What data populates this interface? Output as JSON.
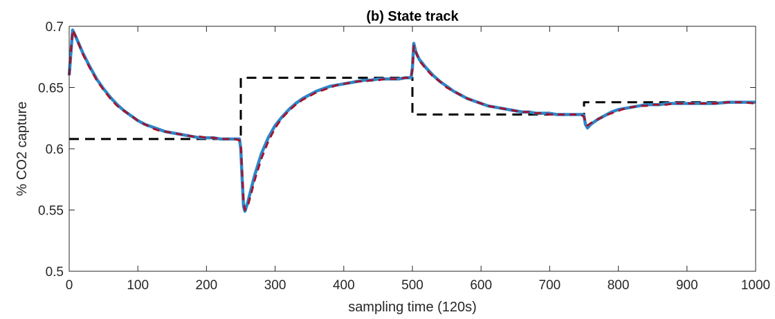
{
  "chart_data": {
    "type": "line",
    "title": "(b) State track",
    "xlabel": "sampling time (120s)",
    "ylabel": "% CO2 capture",
    "xlim": [
      0,
      1000
    ],
    "ylim": [
      0.5,
      0.7
    ],
    "x_ticks": [
      0,
      100,
      200,
      300,
      400,
      500,
      600,
      700,
      800,
      900,
      1000
    ],
    "x_tick_labels": [
      "0",
      "100",
      "200",
      "300",
      "400",
      "500",
      "600",
      "700",
      "800",
      "900",
      "1000"
    ],
    "y_ticks": [
      0.5,
      0.55,
      0.6,
      0.65,
      0.7
    ],
    "y_tick_labels": [
      "0.5",
      "0.55",
      "0.6",
      "0.65",
      "0.7"
    ],
    "grid": false,
    "legend": "none",
    "series": [
      {
        "style": "dashed",
        "color": "#000000",
        "x": [
          0,
          250,
          250,
          500,
          500,
          750,
          750,
          1000
        ],
        "y": [
          0.608,
          0.608,
          0.658,
          0.658,
          0.628,
          0.628,
          0.638,
          0.638
        ]
      },
      {
        "style": "solid",
        "color": "#2e86c8",
        "x": [
          0,
          5,
          10,
          20,
          30,
          40,
          50,
          60,
          70,
          80,
          90,
          100,
          110,
          120,
          130,
          140,
          150,
          160,
          170,
          180,
          190,
          200,
          210,
          220,
          230,
          240,
          248,
          250,
          252,
          254,
          256,
          260,
          265,
          270,
          280,
          290,
          300,
          310,
          320,
          330,
          340,
          350,
          360,
          370,
          380,
          390,
          400,
          410,
          420,
          430,
          440,
          450,
          460,
          470,
          480,
          490,
          498,
          500,
          502,
          505,
          510,
          520,
          530,
          540,
          550,
          560,
          570,
          580,
          590,
          600,
          610,
          620,
          630,
          640,
          650,
          660,
          670,
          680,
          690,
          700,
          710,
          720,
          730,
          740,
          748,
          750,
          752,
          755,
          760,
          770,
          780,
          790,
          800,
          810,
          820,
          830,
          840,
          850,
          860,
          870,
          880,
          890,
          900,
          920,
          940,
          960,
          980,
          1000
        ],
        "y": [
          0.66,
          0.697,
          0.691,
          0.678,
          0.667,
          0.657,
          0.649,
          0.642,
          0.636,
          0.631,
          0.627,
          0.623,
          0.62,
          0.618,
          0.616,
          0.614,
          0.613,
          0.612,
          0.611,
          0.61,
          0.609,
          0.609,
          0.609,
          0.608,
          0.608,
          0.608,
          0.608,
          0.6,
          0.575,
          0.553,
          0.549,
          0.556,
          0.567,
          0.578,
          0.596,
          0.609,
          0.619,
          0.626,
          0.632,
          0.637,
          0.641,
          0.644,
          0.647,
          0.649,
          0.651,
          0.652,
          0.653,
          0.654,
          0.655,
          0.656,
          0.656,
          0.657,
          0.657,
          0.657,
          0.657,
          0.658,
          0.658,
          0.666,
          0.686,
          0.679,
          0.673,
          0.666,
          0.66,
          0.655,
          0.651,
          0.647,
          0.644,
          0.641,
          0.639,
          0.637,
          0.635,
          0.634,
          0.633,
          0.632,
          0.631,
          0.63,
          0.63,
          0.629,
          0.629,
          0.629,
          0.628,
          0.628,
          0.628,
          0.628,
          0.628,
          0.627,
          0.62,
          0.617,
          0.62,
          0.624,
          0.627,
          0.63,
          0.632,
          0.633,
          0.634,
          0.635,
          0.636,
          0.636,
          0.636,
          0.637,
          0.637,
          0.637,
          0.637,
          0.637,
          0.637,
          0.638,
          0.638,
          0.638
        ]
      },
      {
        "style": "dashed",
        "color": "#a2142f",
        "x": [
          0,
          5,
          10,
          20,
          30,
          40,
          50,
          60,
          70,
          80,
          90,
          100,
          110,
          120,
          130,
          140,
          150,
          160,
          170,
          180,
          190,
          200,
          210,
          220,
          230,
          240,
          248,
          250,
          252,
          254,
          256,
          260,
          265,
          270,
          280,
          290,
          300,
          310,
          320,
          330,
          340,
          350,
          360,
          370,
          380,
          390,
          400,
          410,
          420,
          430,
          440,
          450,
          460,
          470,
          480,
          490,
          498,
          500,
          502,
          505,
          510,
          520,
          530,
          540,
          550,
          560,
          570,
          580,
          590,
          600,
          610,
          620,
          630,
          640,
          650,
          660,
          670,
          680,
          690,
          700,
          710,
          720,
          730,
          740,
          748,
          750,
          752,
          755,
          760,
          770,
          780,
          790,
          800,
          810,
          820,
          830,
          840,
          850,
          860,
          870,
          880,
          890,
          900,
          920,
          940,
          960,
          980,
          1000
        ],
        "y": [
          0.66,
          0.697,
          0.691,
          0.677,
          0.666,
          0.656,
          0.648,
          0.641,
          0.635,
          0.631,
          0.627,
          0.623,
          0.62,
          0.617,
          0.615,
          0.614,
          0.613,
          0.612,
          0.611,
          0.61,
          0.61,
          0.609,
          0.609,
          0.608,
          0.608,
          0.608,
          0.607,
          0.602,
          0.58,
          0.557,
          0.55,
          0.553,
          0.563,
          0.574,
          0.592,
          0.606,
          0.617,
          0.625,
          0.631,
          0.636,
          0.64,
          0.643,
          0.646,
          0.648,
          0.65,
          0.652,
          0.653,
          0.654,
          0.655,
          0.655,
          0.656,
          0.656,
          0.657,
          0.657,
          0.657,
          0.658,
          0.658,
          0.665,
          0.684,
          0.679,
          0.672,
          0.665,
          0.659,
          0.655,
          0.65,
          0.647,
          0.644,
          0.641,
          0.639,
          0.637,
          0.635,
          0.634,
          0.633,
          0.632,
          0.631,
          0.63,
          0.63,
          0.629,
          0.629,
          0.628,
          0.628,
          0.628,
          0.628,
          0.628,
          0.627,
          0.626,
          0.621,
          0.619,
          0.621,
          0.624,
          0.627,
          0.629,
          0.631,
          0.633,
          0.634,
          0.635,
          0.635,
          0.636,
          0.636,
          0.636,
          0.637,
          0.637,
          0.637,
          0.637,
          0.637,
          0.638,
          0.638,
          0.637
        ]
      }
    ]
  }
}
